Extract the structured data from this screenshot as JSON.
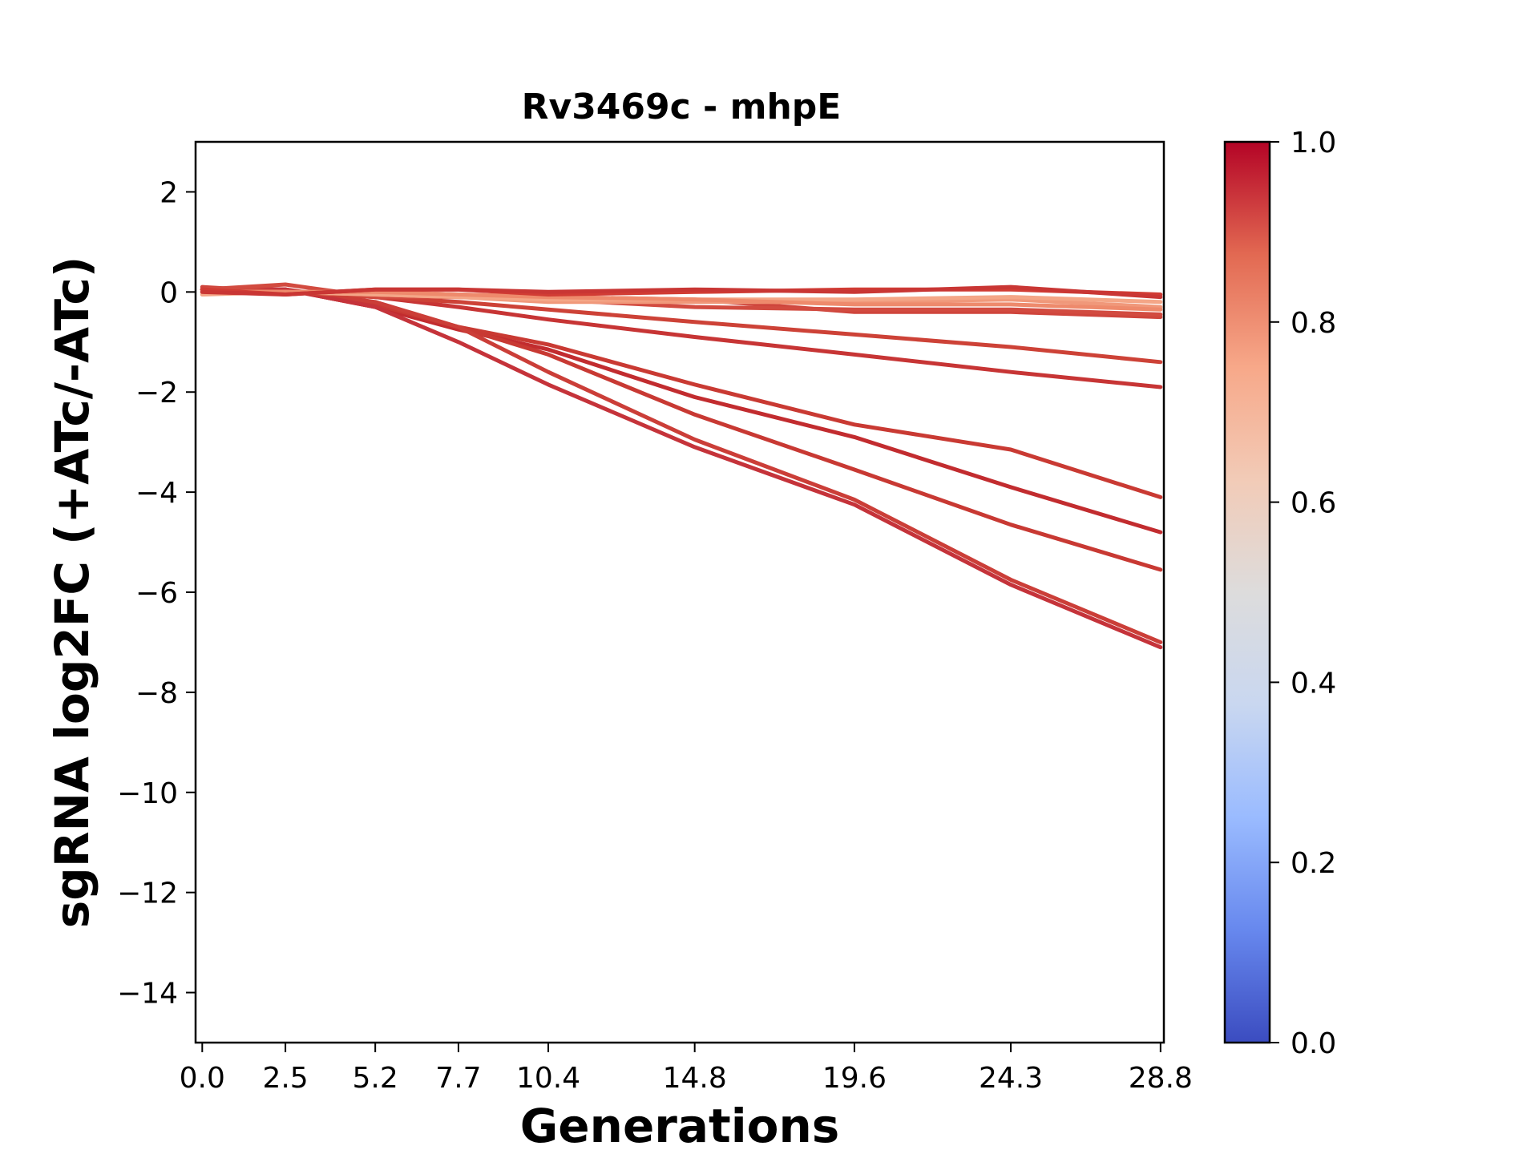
{
  "chart_data": {
    "type": "line",
    "title": "Rv3469c - mhpE",
    "xlabel": "Generations",
    "ylabel": "sgRNA log2FC (+ATc/-ATc)",
    "x": [
      0.0,
      2.5,
      5.2,
      7.7,
      10.4,
      14.8,
      19.6,
      24.3,
      28.8
    ],
    "x_tick_labels": [
      "0.0",
      "2.5",
      "5.2",
      "7.7",
      "10.4",
      "14.8",
      "19.6",
      "24.3",
      "28.8"
    ],
    "xlim": [
      -0.2,
      28.9
    ],
    "ylim": [
      -15,
      3
    ],
    "y_ticks": [
      2,
      0,
      -2,
      -4,
      -6,
      -8,
      -10,
      -12,
      -14
    ],
    "y_tick_labels": [
      "2",
      "0",
      "−2",
      "−4",
      "−6",
      "−8",
      "−10",
      "−12",
      "−14"
    ],
    "grid": false,
    "colormap": "coolwarm",
    "colorbar": {
      "range": [
        0.0,
        1.0
      ],
      "ticks": [
        0.0,
        0.2,
        0.4,
        0.6,
        0.8,
        1.0
      ],
      "tick_labels": [
        "0.0",
        "0.2",
        "0.4",
        "0.6",
        "0.8",
        "1.0"
      ],
      "stops": [
        "#3b4cc0",
        "#6788ee",
        "#9abbff",
        "#c9d7f0",
        "#dddcdc",
        "#f2cbb7",
        "#f7a889",
        "#e26952",
        "#b40426"
      ]
    },
    "series": [
      {
        "color": "#c93a33",
        "values": [
          0.05,
          0.05,
          -0.3,
          -0.7,
          -1.05,
          -1.85,
          -2.65,
          -3.15,
          -4.1
        ]
      },
      {
        "color": "#c22c2f",
        "values": [
          0.05,
          0.05,
          -0.3,
          -0.75,
          -1.15,
          -2.1,
          -2.9,
          -3.9,
          -4.8
        ]
      },
      {
        "color": "#c83933",
        "values": [
          0.0,
          0.05,
          -0.25,
          -0.7,
          -1.25,
          -2.45,
          -3.55,
          -4.65,
          -5.55
        ]
      },
      {
        "color": "#cb3e38",
        "values": [
          0.05,
          0.05,
          -0.2,
          -0.7,
          -1.6,
          -2.95,
          -4.15,
          -5.75,
          -7.0
        ]
      },
      {
        "color": "#c5333a",
        "values": [
          0.05,
          0.05,
          -0.3,
          -1.0,
          -1.85,
          -3.1,
          -4.25,
          -5.85,
          -7.1
        ]
      },
      {
        "color": "#c73535",
        "values": [
          0.05,
          0.0,
          -0.1,
          -0.3,
          -0.55,
          -0.9,
          -1.25,
          -1.6,
          -1.9
        ]
      },
      {
        "color": "#cd4237",
        "values": [
          0.05,
          0.0,
          -0.1,
          -0.2,
          -0.35,
          -0.6,
          -0.85,
          -1.1,
          -1.4
        ]
      },
      {
        "color": "#cf453c",
        "values": [
          0.1,
          0.0,
          0.0,
          -0.05,
          -0.1,
          -0.15,
          -0.4,
          -0.4,
          -0.5
        ]
      },
      {
        "color": "#d24b40",
        "values": [
          0.05,
          0.15,
          -0.1,
          -0.1,
          -0.15,
          -0.3,
          -0.35,
          -0.35,
          -0.45
        ]
      },
      {
        "color": "#f0987a",
        "values": [
          0.0,
          0.0,
          -0.05,
          -0.1,
          -0.2,
          -0.2,
          -0.2,
          -0.15,
          -0.3
        ]
      },
      {
        "color": "#f4a687",
        "values": [
          -0.05,
          0.0,
          -0.05,
          -0.1,
          -0.15,
          -0.15,
          -0.15,
          -0.1,
          -0.2
        ]
      },
      {
        "color": "#ee8a6c",
        "values": [
          0.0,
          0.0,
          0.0,
          -0.05,
          -0.1,
          -0.15,
          -0.25,
          -0.25,
          -0.35
        ]
      },
      {
        "color": "#d13c34",
        "values": [
          0.05,
          -0.05,
          0.05,
          0.05,
          -0.05,
          0.0,
          0.05,
          0.05,
          -0.05
        ]
      },
      {
        "color": "#c93634",
        "values": [
          0.0,
          -0.05,
          0.05,
          0.05,
          0.0,
          0.05,
          0.0,
          0.1,
          -0.1
        ]
      }
    ]
  }
}
